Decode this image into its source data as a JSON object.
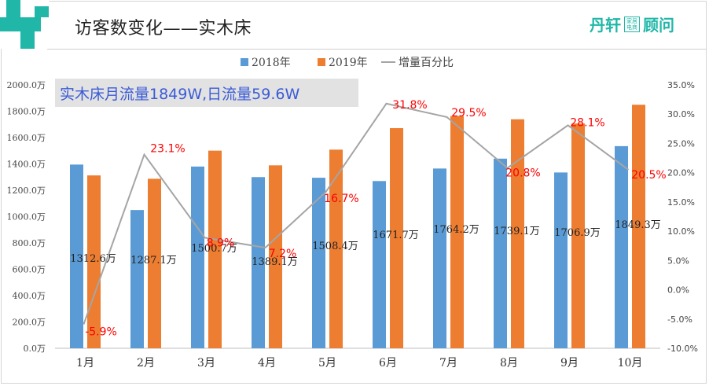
{
  "slide": {
    "title": "访客数变化——实木床",
    "brand_left": "丹轩",
    "brand_box_line1": "家居",
    "brand_box_line2": "电商",
    "brand_right": "顾问"
  },
  "colors": {
    "series_2018": "#5b9bd5",
    "series_2019": "#ed7d31",
    "series_pct": "#a5a5a5",
    "pct_label": "#ff0000",
    "teal": "#20b7a8",
    "callout_bg": "#e2e2e2",
    "callout_text": "#3b5bd6"
  },
  "chart_data": {
    "type": "bar",
    "callout": "实木床月流量1849W,日流量59.6W",
    "categories": [
      "1月",
      "2月",
      "3月",
      "4月",
      "5月",
      "6月",
      "7月",
      "8月",
      "9月",
      "10月"
    ],
    "series": [
      {
        "name": "2018年",
        "type": "bar",
        "axis": "left",
        "values": [
          1395,
          1050,
          1380,
          1300,
          1295,
          1270,
          1365,
          1440,
          1335,
          1535
        ]
      },
      {
        "name": "2019年",
        "type": "bar",
        "axis": "left",
        "values": [
          1312.6,
          1287.1,
          1500.7,
          1389.1,
          1508.4,
          1671.7,
          1764.2,
          1739.1,
          1706.9,
          1849.3
        ]
      },
      {
        "name": "增量百分比",
        "type": "line",
        "axis": "right",
        "values": [
          -5.9,
          23.1,
          8.9,
          7.2,
          16.7,
          31.8,
          29.5,
          20.8,
          28.1,
          20.5
        ]
      }
    ],
    "value_labels_2019": [
      "1312.6万",
      "1287.1万",
      "1500.7万",
      "1389.1万",
      "1508.4万",
      "1671.7万",
      "1764.2万",
      "1739.1万",
      "1706.9万",
      "1849.3万"
    ],
    "pct_labels": [
      "-5.9%",
      "23.1%",
      "8.9%",
      "7.2%",
      "16.7%",
      "31.8%",
      "29.5%",
      "20.8%",
      "28.1%",
      "20.5%"
    ],
    "left_axis": {
      "ylim": [
        0,
        2000
      ],
      "ticks": [
        "0.0万",
        "200.0万",
        "400.0万",
        "600.0万",
        "800.0万",
        "1000.0万",
        "1200.0万",
        "1400.0万",
        "1600.0万",
        "1800.0万",
        "2000.0万"
      ]
    },
    "right_axis": {
      "ylim": [
        -10,
        35
      ],
      "ticks": [
        "-10.0%",
        "-5.0%",
        "0.0%",
        "5.0%",
        "10.0%",
        "15.0%",
        "20.0%",
        "25.0%",
        "30.0%",
        "35.0%"
      ]
    },
    "legend_position": "top-center",
    "grid": false
  }
}
